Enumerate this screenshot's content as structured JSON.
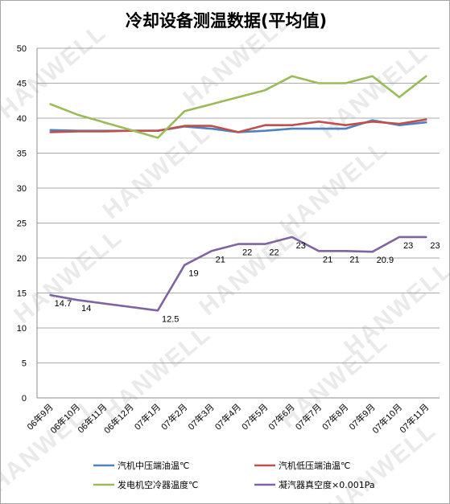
{
  "chart_data": {
    "type": "line",
    "title": "冷却设备测温数据(平均值)",
    "watermark": "HANWELL",
    "categories": [
      "06年9月",
      "06年10月",
      "06年11月",
      "06年12月",
      "07年1月",
      "07年2月",
      "07年3月",
      "07年4月",
      "07年5月",
      "07年6月",
      "07年7月",
      "07年8月",
      "07年9月",
      "07年10月",
      "07年11月"
    ],
    "ylim": [
      0,
      50
    ],
    "yticks": [
      0,
      5,
      10,
      15,
      20,
      25,
      30,
      35,
      40,
      45,
      50
    ],
    "grid": true,
    "legend_position": "bottom",
    "series": [
      {
        "name": "汽机中压端油温℃",
        "color": "#4f81bd",
        "values": [
          38.3,
          38.2,
          38.2,
          38.2,
          38.2,
          38.8,
          38.5,
          38.0,
          38.2,
          38.5,
          38.5,
          38.5,
          39.7,
          39.0,
          39.4
        ]
      },
      {
        "name": "汽机低压端油温℃",
        "color": "#c0504d",
        "values": [
          38.0,
          38.1,
          38.1,
          38.2,
          38.2,
          38.9,
          38.9,
          38.0,
          39.0,
          39.0,
          39.5,
          39.0,
          39.5,
          39.2,
          39.8
        ]
      },
      {
        "name": "发电机空冷器温度℃",
        "color": "#9bbb59",
        "values": [
          42.0,
          40.5,
          39.4,
          38.3,
          37.2,
          41.0,
          42.0,
          43.0,
          44.0,
          46.0,
          45.0,
          45.0,
          46.0,
          43.0,
          46.0
        ]
      },
      {
        "name": "凝汽器真空度×0.001Pa",
        "color": "#8064a2",
        "values": [
          14.7,
          14,
          null,
          null,
          12.5,
          19,
          21,
          22,
          22,
          23,
          21,
          21,
          20.9,
          23,
          23
        ],
        "data_labels": [
          "14.7",
          "14",
          "",
          "",
          "12.5",
          "19",
          "21",
          "22",
          "22",
          "23",
          "21",
          "21",
          "20.9",
          "23",
          "23"
        ]
      }
    ]
  }
}
